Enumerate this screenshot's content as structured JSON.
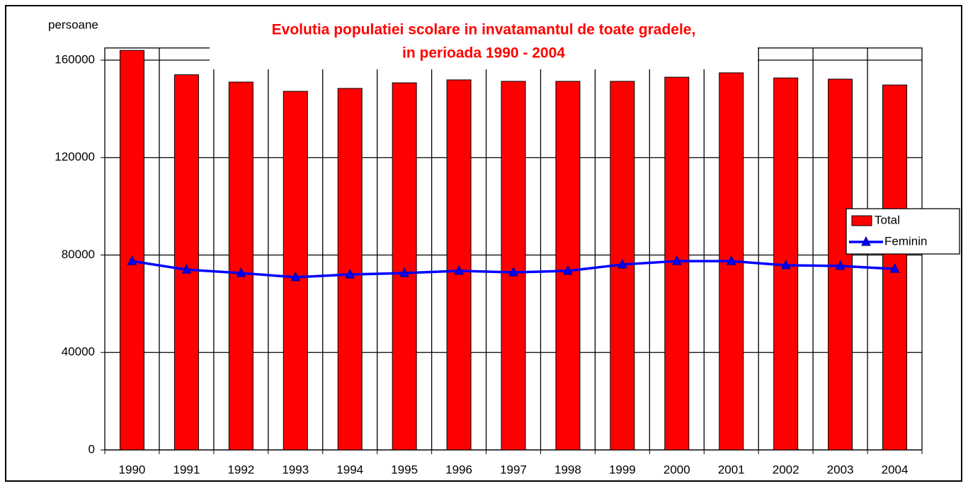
{
  "chart_data": {
    "type": "bar_line",
    "title": [
      "Evolutia  populatiei scolare in invatamantul de toate gradele,",
      "in perioada 1990 - 2004"
    ],
    "y_label": "persoane",
    "categories": [
      "1990",
      "1991",
      "1992",
      "1993",
      "1994",
      "1995",
      "1996",
      "1997",
      "1998",
      "1999",
      "2000",
      "2001",
      "2002",
      "2003",
      "2004"
    ],
    "series": [
      {
        "name": "Total",
        "type": "bar",
        "color": "#ff0000",
        "values": [
          164000,
          154000,
          151000,
          147200,
          148400,
          150700,
          151900,
          151300,
          151300,
          151300,
          153000,
          154800,
          152700,
          152200,
          149800
        ]
      },
      {
        "name": "Feminin",
        "type": "line",
        "color": "#0000ff",
        "values": [
          77500,
          74000,
          72600,
          70900,
          72000,
          72600,
          73500,
          72900,
          73500,
          76100,
          77500,
          77500,
          75800,
          75500,
          74300
        ]
      }
    ],
    "ylim": [
      0,
      165000
    ],
    "yticks": [
      0,
      40000,
      80000,
      120000,
      160000
    ],
    "grid": true,
    "legend": "right"
  }
}
